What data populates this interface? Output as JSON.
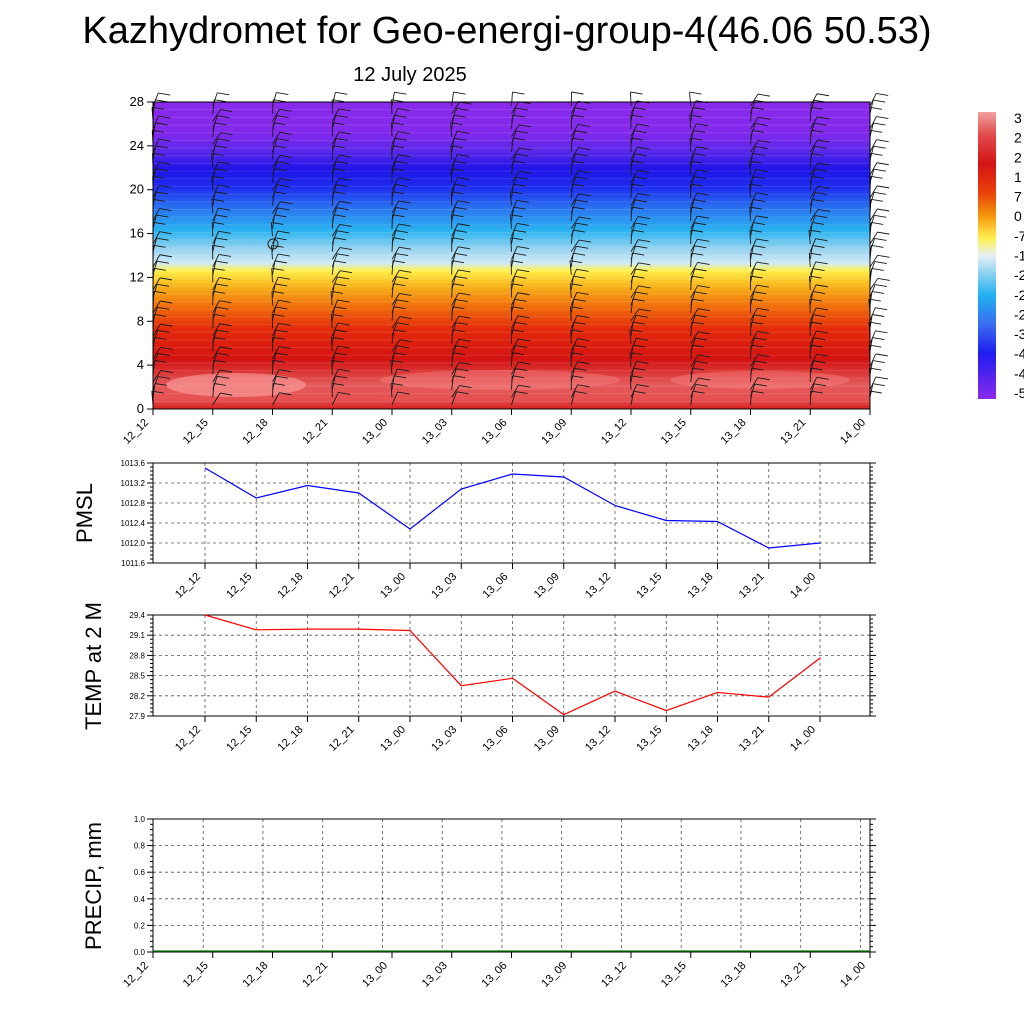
{
  "title": "Kazhydromet for Geo-energi-group-4(46.06 50.53)",
  "subtitle": "12 July 2025",
  "time_labels": [
    "12_12",
    "12_15",
    "12_18",
    "12_21",
    "13_00",
    "13_03",
    "13_06",
    "13_09",
    "13_12",
    "13_15",
    "13_18",
    "13_21",
    "14_00"
  ],
  "colors": {
    "pmsl_line": "#0000ff",
    "temp_line": "#ff0000",
    "precip_line": "#008000",
    "grid": "#555555"
  },
  "chart_data": [
    {
      "id": "profile",
      "type": "heatmap",
      "y_ticks": [
        0,
        4,
        8,
        12,
        16,
        20,
        24,
        28
      ],
      "ylim": [
        0,
        28
      ],
      "colorbar_labels": [
        "3",
        "2",
        "2",
        "1",
        "7",
        "0",
        "-7",
        "-1",
        "-2",
        "-2",
        "-2",
        "-3",
        "-4",
        "-4",
        "-5"
      ],
      "legend_position": "right",
      "note_barbs": "wind barbs overlaid at each time"
    },
    {
      "id": "pmsl",
      "type": "line",
      "ylabel": "PMSL",
      "y_ticks": [
        1011.6,
        1012.0,
        1012.4,
        1012.8,
        1013.2,
        1013.6
      ],
      "ylim": [
        1011.6,
        1013.6
      ],
      "values": [
        1013.5,
        1012.9,
        1013.15,
        1013.0,
        1012.28,
        1013.08,
        1013.38,
        1013.32,
        1012.75,
        1012.45,
        1012.43,
        1011.9,
        1012.0
      ],
      "grid": true
    },
    {
      "id": "temp",
      "type": "line",
      "ylabel": "TEMP at 2 M",
      "y_ticks": [
        27.9,
        28.2,
        28.5,
        28.8,
        29.1,
        29.4
      ],
      "ylim": [
        27.9,
        29.4
      ],
      "values": [
        29.4,
        29.18,
        29.19,
        29.19,
        29.17,
        28.35,
        28.46,
        27.92,
        28.27,
        27.98,
        28.25,
        28.18,
        28.76
      ],
      "grid": true
    },
    {
      "id": "precip",
      "type": "line",
      "ylabel": "PRECIP, mm",
      "y_ticks": [
        0.0,
        0.2,
        0.4,
        0.6,
        0.8,
        1.0
      ],
      "ylim": [
        0.0,
        1.0
      ],
      "values": [
        0,
        0,
        0,
        0,
        0,
        0,
        0,
        0,
        0,
        0,
        0,
        0,
        0
      ],
      "grid": true
    }
  ]
}
